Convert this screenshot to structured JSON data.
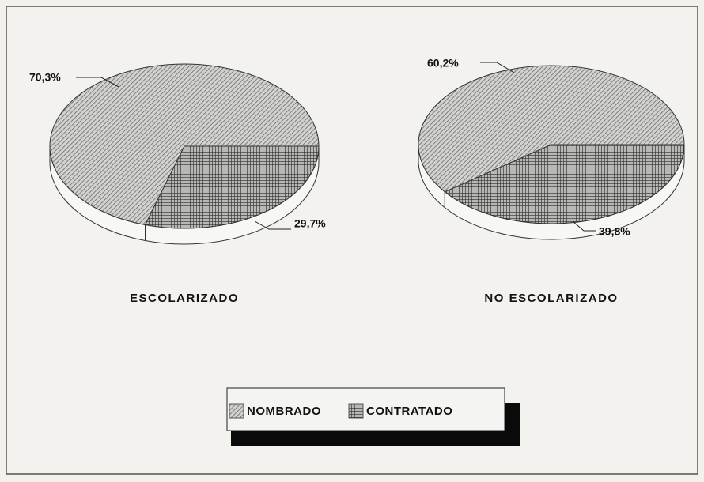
{
  "chart_data": [
    {
      "type": "pie",
      "title": "ESCOLARIZADO",
      "categories": [
        "NOMBRADO",
        "CONTRATADO"
      ],
      "values": [
        70.3,
        29.7
      ],
      "value_labels": [
        "70,3%",
        "29,7%"
      ],
      "patterns": [
        "diagonal",
        "grid"
      ]
    },
    {
      "type": "pie",
      "title": "NO ESCOLARIZADO",
      "categories": [
        "NOMBRADO",
        "CONTRATADO"
      ],
      "values": [
        60.2,
        39.8
      ],
      "value_labels": [
        "60,2%",
        "39,8%"
      ],
      "patterns": [
        "diagonal",
        "grid"
      ]
    }
  ]
}
